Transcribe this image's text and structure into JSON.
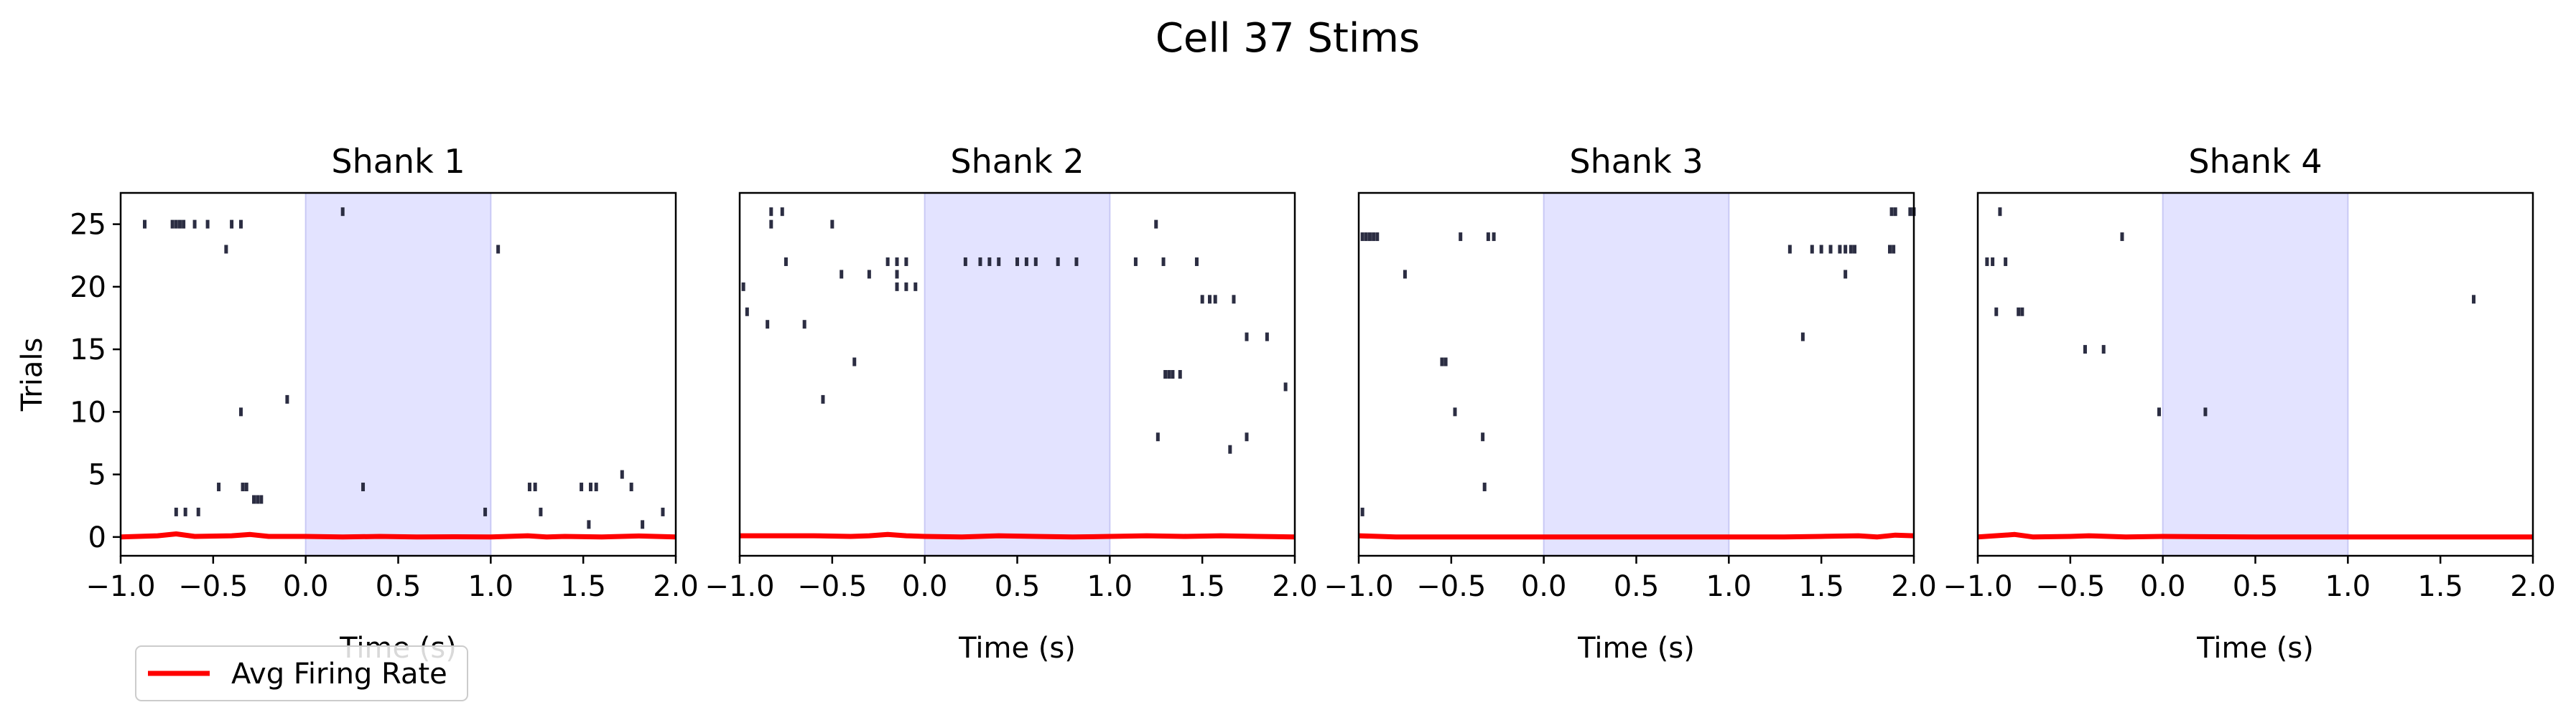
{
  "figure": {
    "title": "Cell 37 Stims"
  },
  "legend": {
    "label": "Avg Firing Rate",
    "placement": "lower-left",
    "color": "#ff0000"
  },
  "styles": {
    "spike_color": "#2b2d42",
    "stim_fill": "#e3e3ff",
    "stim_edge": "#c9c9f5",
    "rate_color": "#ff0000"
  },
  "chart_data": [
    {
      "type": "raster",
      "title": "Shank 1",
      "xlabel": "Time (s)",
      "ylabel": "Trials",
      "xlim": [
        -1.0,
        2.0
      ],
      "ylim": [
        -1.5,
        27.5
      ],
      "xticks": [
        "−1.0",
        "−0.5",
        "0.0",
        "0.5",
        "1.0",
        "1.5",
        "2.0"
      ],
      "yticks": [
        "0",
        "5",
        "10",
        "15",
        "20",
        "25"
      ],
      "stim_interval": [
        0.0,
        1.0
      ],
      "spikes": [
        [
          -0.87,
          25
        ],
        [
          -0.72,
          25
        ],
        [
          -0.7,
          25
        ],
        [
          -0.68,
          25
        ],
        [
          -0.66,
          25
        ],
        [
          -0.6,
          25
        ],
        [
          -0.53,
          25
        ],
        [
          -0.4,
          25
        ],
        [
          -0.35,
          25
        ],
        [
          0.2,
          26
        ],
        [
          -0.43,
          23
        ],
        [
          1.04,
          23
        ],
        [
          -0.1,
          11
        ],
        [
          -0.35,
          10
        ],
        [
          -0.47,
          4
        ],
        [
          -0.34,
          4
        ],
        [
          -0.32,
          4
        ],
        [
          0.31,
          4
        ],
        [
          1.21,
          4
        ],
        [
          1.24,
          4
        ],
        [
          1.49,
          4
        ],
        [
          1.54,
          4
        ],
        [
          1.57,
          4
        ],
        [
          1.76,
          4
        ],
        [
          1.71,
          5
        ],
        [
          -0.28,
          3
        ],
        [
          -0.26,
          3
        ],
        [
          -0.24,
          3
        ],
        [
          -0.7,
          2
        ],
        [
          -0.65,
          2
        ],
        [
          -0.58,
          2
        ],
        [
          0.97,
          2
        ],
        [
          1.27,
          2
        ],
        [
          1.93,
          2
        ],
        [
          1.53,
          1
        ],
        [
          1.82,
          1
        ]
      ],
      "rate": [
        [
          -1.0,
          0.0
        ],
        [
          -0.8,
          0.1
        ],
        [
          -0.7,
          0.25
        ],
        [
          -0.6,
          0.05
        ],
        [
          -0.4,
          0.1
        ],
        [
          -0.3,
          0.2
        ],
        [
          -0.2,
          0.05
        ],
        [
          0.0,
          0.05
        ],
        [
          0.2,
          0.0
        ],
        [
          0.4,
          0.05
        ],
        [
          0.6,
          0.0
        ],
        [
          0.8,
          0.02
        ],
        [
          1.0,
          0.0
        ],
        [
          1.2,
          0.1
        ],
        [
          1.3,
          0.0
        ],
        [
          1.4,
          0.05
        ],
        [
          1.6,
          0.0
        ],
        [
          1.8,
          0.08
        ],
        [
          2.0,
          0.0
        ]
      ]
    },
    {
      "type": "raster",
      "title": "Shank 2",
      "xlabel": "Time (s)",
      "ylabel": "",
      "xlim": [
        -1.0,
        2.0
      ],
      "ylim": [
        -1.5,
        27.5
      ],
      "xticks": [
        "−1.0",
        "−0.5",
        "0.0",
        "0.5",
        "1.0",
        "1.5",
        "2.0"
      ],
      "yticks": [],
      "stim_interval": [
        0.0,
        1.0
      ],
      "spikes": [
        [
          -0.83,
          26
        ],
        [
          -0.77,
          26
        ],
        [
          -0.83,
          25
        ],
        [
          -0.5,
          25
        ],
        [
          -0.75,
          22
        ],
        [
          -0.45,
          21
        ],
        [
          -0.3,
          21
        ],
        [
          -0.2,
          22
        ],
        [
          -0.15,
          22
        ],
        [
          -0.1,
          22
        ],
        [
          -0.15,
          21
        ],
        [
          -0.15,
          20
        ],
        [
          -0.1,
          20
        ],
        [
          -0.05,
          20
        ],
        [
          0.22,
          22
        ],
        [
          0.3,
          22
        ],
        [
          0.35,
          22
        ],
        [
          0.4,
          22
        ],
        [
          0.5,
          22
        ],
        [
          0.55,
          22
        ],
        [
          0.6,
          22
        ],
        [
          0.72,
          22
        ],
        [
          0.82,
          22
        ],
        [
          1.14,
          22
        ],
        [
          1.29,
          22
        ],
        [
          1.47,
          22
        ],
        [
          1.25,
          25
        ],
        [
          -0.98,
          20
        ],
        [
          -0.96,
          18
        ],
        [
          -0.85,
          17
        ],
        [
          -0.65,
          17
        ],
        [
          -0.38,
          14
        ],
        [
          -0.55,
          11
        ],
        [
          1.5,
          19
        ],
        [
          1.54,
          19
        ],
        [
          1.57,
          19
        ],
        [
          1.67,
          19
        ],
        [
          1.74,
          16
        ],
        [
          1.85,
          16
        ],
        [
          1.3,
          13
        ],
        [
          1.32,
          13
        ],
        [
          1.34,
          13
        ],
        [
          1.38,
          13
        ],
        [
          1.95,
          12
        ],
        [
          1.26,
          8
        ],
        [
          1.74,
          8
        ],
        [
          1.65,
          7
        ]
      ],
      "rate": [
        [
          -1.0,
          0.1
        ],
        [
          -0.6,
          0.1
        ],
        [
          -0.4,
          0.05
        ],
        [
          -0.3,
          0.1
        ],
        [
          -0.2,
          0.2
        ],
        [
          -0.1,
          0.1
        ],
        [
          0.0,
          0.05
        ],
        [
          0.2,
          0.0
        ],
        [
          0.4,
          0.1
        ],
        [
          0.6,
          0.05
        ],
        [
          0.8,
          0.0
        ],
        [
          1.0,
          0.05
        ],
        [
          1.2,
          0.1
        ],
        [
          1.4,
          0.05
        ],
        [
          1.6,
          0.1
        ],
        [
          1.8,
          0.05
        ],
        [
          2.0,
          0.0
        ]
      ]
    },
    {
      "type": "raster",
      "title": "Shank 3",
      "xlabel": "Time (s)",
      "ylabel": "",
      "xlim": [
        -1.0,
        2.0
      ],
      "ylim": [
        -1.5,
        27.5
      ],
      "xticks": [
        "−1.0",
        "−0.5",
        "0.0",
        "0.5",
        "1.0",
        "1.5",
        "2.0"
      ],
      "yticks": [],
      "stim_interval": [
        0.0,
        1.0
      ],
      "spikes": [
        [
          -0.98,
          24
        ],
        [
          -0.96,
          24
        ],
        [
          -0.94,
          24
        ],
        [
          -0.92,
          24
        ],
        [
          -0.9,
          24
        ],
        [
          -0.45,
          24
        ],
        [
          -0.3,
          24
        ],
        [
          -0.27,
          24
        ],
        [
          -0.75,
          21
        ],
        [
          -0.55,
          14
        ],
        [
          -0.53,
          14
        ],
        [
          -0.48,
          10
        ],
        [
          -0.33,
          8
        ],
        [
          -0.32,
          4
        ],
        [
          -0.98,
          2
        ],
        [
          1.33,
          23
        ],
        [
          1.45,
          23
        ],
        [
          1.5,
          23
        ],
        [
          1.55,
          23
        ],
        [
          1.6,
          23
        ],
        [
          1.63,
          23
        ],
        [
          1.66,
          23
        ],
        [
          1.68,
          23
        ],
        [
          1.87,
          23
        ],
        [
          1.89,
          23
        ],
        [
          1.63,
          21
        ],
        [
          1.4,
          16
        ],
        [
          1.88,
          26
        ],
        [
          1.9,
          26
        ],
        [
          1.98,
          26
        ],
        [
          2.0,
          26
        ]
      ],
      "rate": [
        [
          -1.0,
          0.1
        ],
        [
          -0.8,
          0.0
        ],
        [
          -0.5,
          0.0
        ],
        [
          0.0,
          0.0
        ],
        [
          0.5,
          0.0
        ],
        [
          1.0,
          0.0
        ],
        [
          1.3,
          0.0
        ],
        [
          1.5,
          0.05
        ],
        [
          1.7,
          0.1
        ],
        [
          1.8,
          0.0
        ],
        [
          1.9,
          0.15
        ],
        [
          2.0,
          0.1
        ]
      ]
    },
    {
      "type": "raster",
      "title": "Shank 4",
      "xlabel": "Time (s)",
      "ylabel": "",
      "xlim": [
        -1.0,
        2.0
      ],
      "ylim": [
        -1.5,
        27.5
      ],
      "xticks": [
        "−1.0",
        "−0.5",
        "0.0",
        "0.5",
        "1.0",
        "1.5",
        "2.0"
      ],
      "yticks": [],
      "stim_interval": [
        0.0,
        1.0
      ],
      "spikes": [
        [
          -0.88,
          26
        ],
        [
          -0.95,
          22
        ],
        [
          -0.92,
          22
        ],
        [
          -0.85,
          22
        ],
        [
          -0.9,
          18
        ],
        [
          -0.78,
          18
        ],
        [
          -0.76,
          18
        ],
        [
          -0.42,
          15
        ],
        [
          -0.32,
          15
        ],
        [
          -0.22,
          24
        ],
        [
          -0.02,
          10
        ],
        [
          0.23,
          10
        ],
        [
          1.68,
          19
        ]
      ],
      "rate": [
        [
          -1.0,
          0.0
        ],
        [
          -0.8,
          0.2
        ],
        [
          -0.7,
          0.0
        ],
        [
          -0.5,
          0.05
        ],
        [
          -0.4,
          0.1
        ],
        [
          -0.2,
          0.0
        ],
        [
          0.0,
          0.05
        ],
        [
          0.5,
          0.0
        ],
        [
          1.0,
          0.0
        ],
        [
          1.5,
          0.0
        ],
        [
          2.0,
          0.0
        ]
      ]
    }
  ]
}
